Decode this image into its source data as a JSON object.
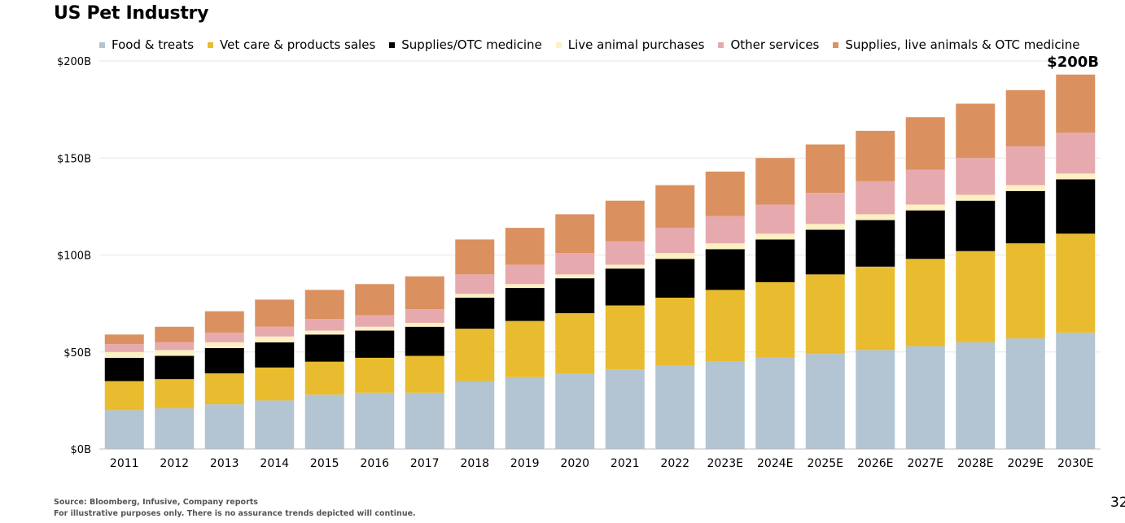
{
  "chart_data": {
    "type": "bar",
    "stacked": true,
    "title": "US Pet Industry",
    "callout": "$200B",
    "categories": [
      "2011",
      "2012",
      "2013",
      "2014",
      "2015",
      "2016",
      "2017",
      "2018",
      "2019",
      "2020",
      "2021",
      "2022",
      "2023E",
      "2024E",
      "2025E",
      "2026E",
      "2027E",
      "2028E",
      "2029E",
      "2030E"
    ],
    "ylim": [
      0,
      200
    ],
    "yticks": [
      0,
      50,
      100,
      150,
      200
    ],
    "ytick_labels": [
      "$0B",
      "$50B",
      "$100B",
      "$150B",
      "$200B"
    ],
    "grid": true,
    "legend_position": "top",
    "series": [
      {
        "name": "Food & treats",
        "color": "#b3c4d2",
        "values": [
          20,
          21,
          23,
          25,
          28,
          29,
          29,
          35,
          37,
          39,
          41,
          43,
          45,
          47,
          49,
          51,
          53,
          55,
          57,
          60
        ]
      },
      {
        "name": "Vet care & products sales",
        "color": "#e9bc2f",
        "values": [
          15,
          15,
          16,
          17,
          17,
          18,
          19,
          27,
          29,
          31,
          33,
          35,
          37,
          39,
          41,
          43,
          45,
          47,
          49,
          51
        ]
      },
      {
        "name": "Supplies/OTC medicine",
        "color": "#000000",
        "values": [
          12,
          12,
          13,
          13,
          14,
          14,
          15,
          16,
          17,
          18,
          19,
          20,
          21,
          22,
          23,
          24,
          25,
          26,
          27,
          28
        ]
      },
      {
        "name": "Live animal purchases",
        "color": "#fdf0c2",
        "values": [
          3,
          3,
          3,
          3,
          2,
          2,
          2,
          2,
          2,
          2,
          2,
          3,
          3,
          3,
          3,
          3,
          3,
          3,
          3,
          3
        ]
      },
      {
        "name": "Other services",
        "color": "#e6aaae",
        "values": [
          4,
          4,
          5,
          5,
          6,
          6,
          7,
          10,
          10,
          11,
          12,
          13,
          14,
          15,
          16,
          17,
          18,
          19,
          20,
          21
        ]
      },
      {
        "name": "Supplies, live animals & OTC medicine",
        "color": "#db905f",
        "values": [
          5,
          8,
          11,
          14,
          15,
          16,
          17,
          18,
          19,
          20,
          21,
          22,
          23,
          24,
          25,
          26,
          27,
          28,
          29,
          30
        ]
      }
    ]
  },
  "footer": {
    "source": "Source: Bloomberg, Infusive, Company reports",
    "disclaimer": "For illustrative purposes only. There is no assurance trends depicted will continue.",
    "page_number": "32"
  }
}
